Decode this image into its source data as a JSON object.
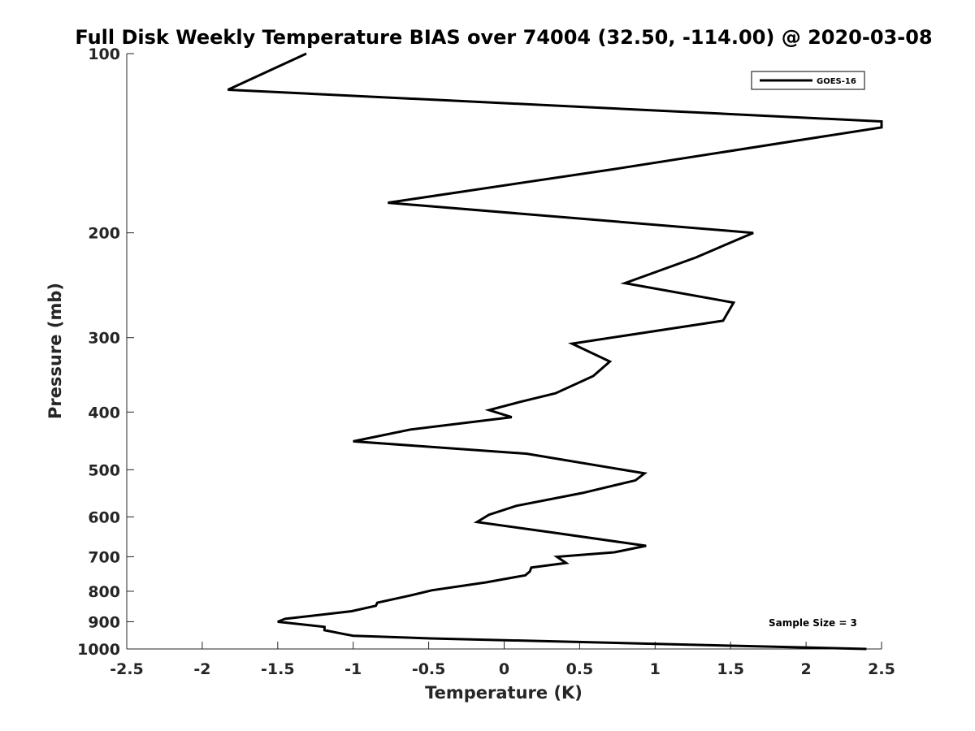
{
  "chart_data": {
    "type": "line",
    "title": "Full Disk Weekly Temperature BIAS over 74004 (32.50, -114.00) @ 2020-03-08",
    "xlabel": "Temperature (K)",
    "ylabel": "Pressure (mb)",
    "xlim": [
      -2.5,
      2.5
    ],
    "ylim": [
      100,
      1000
    ],
    "y_scale": "log",
    "y_direction": "reversed",
    "xticks": [
      "-2.5",
      "-2",
      "-1.5",
      "-1",
      "-0.5",
      "0",
      "0.5",
      "1",
      "1.5",
      "2",
      "2.5"
    ],
    "yticks": [
      "100",
      "200",
      "300",
      "400",
      "500",
      "600",
      "700",
      "800",
      "900",
      "1000"
    ],
    "grid": false,
    "legend_position": "top-right",
    "annotation": "Sample Size = 3",
    "series": [
      {
        "name": "GOES-16",
        "color": "#000000",
        "points": [
          [
            -1.31,
            100
          ],
          [
            -1.83,
            115
          ],
          [
            2.5,
            130
          ],
          [
            2.5,
            133
          ],
          [
            0.75,
            156
          ],
          [
            -0.77,
            178
          ],
          [
            1.65,
            200
          ],
          [
            1.27,
            220
          ],
          [
            0.8,
            243
          ],
          [
            1.52,
            262
          ],
          [
            1.45,
            281
          ],
          [
            0.45,
            307
          ],
          [
            0.7,
            329
          ],
          [
            0.59,
            348
          ],
          [
            0.34,
            372
          ],
          [
            0.1,
            385
          ],
          [
            -0.1,
            397
          ],
          [
            0.05,
            408
          ],
          [
            -0.62,
            428
          ],
          [
            -1.0,
            448
          ],
          [
            0.15,
            470
          ],
          [
            0.93,
            507
          ],
          [
            0.87,
            521
          ],
          [
            0.52,
            547
          ],
          [
            0.08,
            575
          ],
          [
            -0.1,
            595
          ],
          [
            -0.18,
            612
          ],
          [
            0.33,
            638
          ],
          [
            0.94,
            671
          ],
          [
            0.73,
            688
          ],
          [
            0.35,
            700
          ],
          [
            0.41,
            717
          ],
          [
            0.18,
            730
          ],
          [
            0.17,
            741
          ],
          [
            0.14,
            752
          ],
          [
            -0.12,
            773
          ],
          [
            -0.48,
            797
          ],
          [
            -0.62,
            813
          ],
          [
            -0.84,
            836
          ],
          [
            -0.85,
            846
          ],
          [
            -1.01,
            864
          ],
          [
            -1.45,
            890
          ],
          [
            -1.5,
            900
          ],
          [
            -1.19,
            918
          ],
          [
            -1.19,
            930
          ],
          [
            -1.06,
            944
          ],
          [
            -1.0,
            950
          ],
          [
            -0.49,
            960
          ],
          [
            2.4,
            1000
          ]
        ]
      }
    ]
  }
}
